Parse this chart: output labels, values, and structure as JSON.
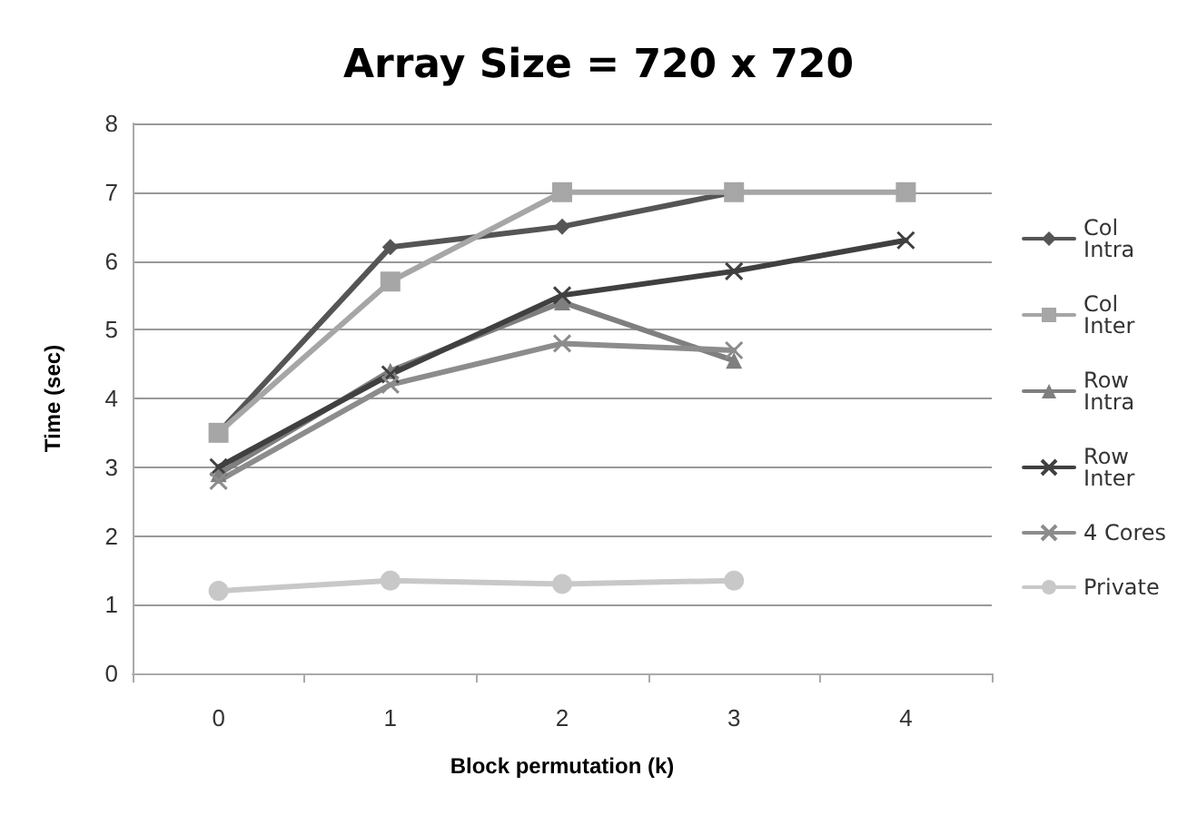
{
  "chart_data": {
    "type": "line",
    "title": "Array Size = 720 x 720",
    "xlabel": "Block permutation (k)",
    "ylabel": "Time (sec)",
    "categories": [
      "0",
      "1",
      "2",
      "3",
      "4"
    ],
    "series": [
      {
        "name": "Col Intra",
        "color": "#555555",
        "marker": "diamond",
        "values": [
          3.5,
          6.2,
          6.5,
          7.0,
          null
        ]
      },
      {
        "name": "Col Inter",
        "color": "#a6a6a6",
        "marker": "square",
        "values": [
          3.5,
          5.7,
          7.0,
          7.0,
          7.0
        ]
      },
      {
        "name": "Row Intra",
        "color": "#7f7f7f",
        "marker": "triangle",
        "values": [
          2.9,
          4.4,
          5.4,
          4.55,
          null
        ]
      },
      {
        "name": "Row Inter",
        "color": "#404040",
        "marker": "cross",
        "values": [
          3.0,
          4.35,
          5.5,
          5.85,
          6.3
        ]
      },
      {
        "name": "4 Cores",
        "color": "#8c8c8c",
        "marker": "cross",
        "values": [
          2.8,
          4.2,
          4.8,
          4.7,
          null
        ]
      },
      {
        "name": "Private",
        "color": "#c8c8c8",
        "marker": "circle",
        "values": [
          1.2,
          1.35,
          1.3,
          1.35,
          null
        ]
      }
    ],
    "ylim": [
      0,
      8
    ],
    "yticks": [
      0,
      1,
      2,
      3,
      4,
      5,
      6,
      7,
      8
    ],
    "grid": "y",
    "legend": "right"
  }
}
